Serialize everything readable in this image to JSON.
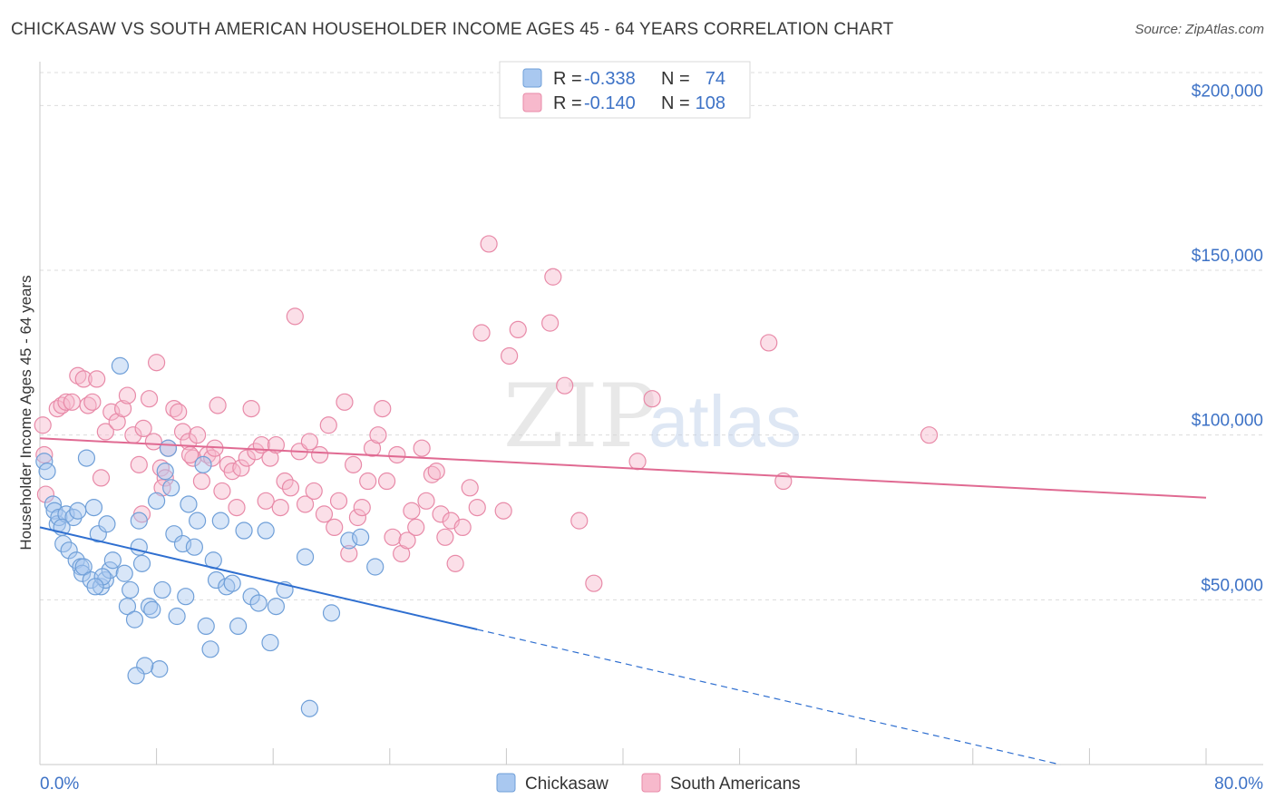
{
  "title": "CHICKASAW VS SOUTH AMERICAN HOUSEHOLDER INCOME AGES 45 - 64 YEARS CORRELATION CHART",
  "source": "Source: ZipAtlas.com",
  "watermark": {
    "part1": "ZIP",
    "part2": "atlas"
  },
  "colors": {
    "chickasaw_fill": "#a9c8f0",
    "chickasaw_stroke": "#6f9fd8",
    "chickasaw_line": "#2f6fd0",
    "south_fill": "#f7b9cc",
    "south_stroke": "#e88aa8",
    "south_line": "#e06a92",
    "axis_text": "#3d72c6",
    "grid": "#dcdcdc"
  },
  "legend": {
    "rows": [
      {
        "r_label": "R =",
        "r_value": "-0.338",
        "n_label": "N =",
        "n_value": "74"
      },
      {
        "r_label": "R =",
        "r_value": "-0.140",
        "n_label": "N =",
        "n_value": "108"
      }
    ]
  },
  "bottom_legend": [
    "Chickasaw",
    "South Americans"
  ],
  "chart_data": {
    "type": "scatter",
    "title": "CHICKASAW VS SOUTH AMERICAN HOUSEHOLDER INCOME AGES 45 - 64 YEARS CORRELATION CHART",
    "xlabel": "",
    "ylabel": "Householder Income Ages 45 - 64 years",
    "xlim": [
      0,
      80
    ],
    "ylim": [
      0,
      210000
    ],
    "x_tick_labels": [
      "0.0%",
      "80.0%"
    ],
    "y_ticks": [
      50000,
      100000,
      150000,
      200000
    ],
    "y_tick_labels": [
      "$50,000",
      "$100,000",
      "$150,000",
      "$200,000"
    ],
    "grid": true,
    "legend_position": "top-center",
    "series": [
      {
        "name": "Chickasaw",
        "R": -0.338,
        "N": 74,
        "trend": {
          "x0": 0,
          "y0": 72000,
          "x1": 30,
          "y1": 41000,
          "dash_to_x": 70,
          "dash_to_y": 0
        },
        "points": [
          [
            0.3,
            92000
          ],
          [
            0.5,
            89000
          ],
          [
            0.9,
            79000
          ],
          [
            1.0,
            77000
          ],
          [
            1.2,
            73000
          ],
          [
            1.3,
            75000
          ],
          [
            1.6,
            67000
          ],
          [
            1.8,
            76000
          ],
          [
            2.0,
            65000
          ],
          [
            2.3,
            75000
          ],
          [
            2.5,
            62000
          ],
          [
            2.8,
            60000
          ],
          [
            2.9,
            58000
          ],
          [
            3.0,
            60000
          ],
          [
            3.2,
            93000
          ],
          [
            3.5,
            56000
          ],
          [
            3.7,
            78000
          ],
          [
            4.0,
            70000
          ],
          [
            4.2,
            54000
          ],
          [
            4.5,
            56000
          ],
          [
            4.6,
            73000
          ],
          [
            4.8,
            59000
          ],
          [
            5.0,
            62000
          ],
          [
            5.5,
            121000
          ],
          [
            6.0,
            48000
          ],
          [
            6.2,
            53000
          ],
          [
            6.5,
            44000
          ],
          [
            6.8,
            74000
          ],
          [
            6.8,
            66000
          ],
          [
            7.0,
            61000
          ],
          [
            7.5,
            48000
          ],
          [
            7.7,
            47000
          ],
          [
            8.0,
            80000
          ],
          [
            8.2,
            29000
          ],
          [
            8.4,
            53000
          ],
          [
            8.6,
            89000
          ],
          [
            8.8,
            96000
          ],
          [
            9.0,
            84000
          ],
          [
            9.2,
            70000
          ],
          [
            9.4,
            45000
          ],
          [
            9.8,
            67000
          ],
          [
            10.0,
            51000
          ],
          [
            10.2,
            79000
          ],
          [
            10.6,
            66000
          ],
          [
            10.8,
            74000
          ],
          [
            11.2,
            91000
          ],
          [
            11.4,
            42000
          ],
          [
            11.7,
            35000
          ],
          [
            11.9,
            62000
          ],
          [
            12.1,
            56000
          ],
          [
            12.4,
            74000
          ],
          [
            12.8,
            54000
          ],
          [
            13.2,
            55000
          ],
          [
            13.6,
            42000
          ],
          [
            14.0,
            71000
          ],
          [
            14.5,
            51000
          ],
          [
            15.0,
            49000
          ],
          [
            15.5,
            71000
          ],
          [
            15.8,
            37000
          ],
          [
            16.2,
            48000
          ],
          [
            16.8,
            53000
          ],
          [
            18.2,
            63000
          ],
          [
            18.5,
            17000
          ],
          [
            20.0,
            46000
          ],
          [
            21.2,
            68000
          ],
          [
            22.0,
            69000
          ],
          [
            23.0,
            60000
          ],
          [
            5.8,
            58000
          ],
          [
            7.2,
            30000
          ],
          [
            1.5,
            72000
          ],
          [
            2.6,
            77000
          ],
          [
            4.3,
            57000
          ],
          [
            6.6,
            27000
          ],
          [
            3.8,
            54000
          ]
        ]
      },
      {
        "name": "South Americans",
        "R": -0.14,
        "N": 108,
        "trend": {
          "x0": 0,
          "y0": 99000,
          "x1": 80,
          "y1": 81000
        },
        "points": [
          [
            0.2,
            103000
          ],
          [
            0.3,
            94000
          ],
          [
            0.4,
            82000
          ],
          [
            1.2,
            108000
          ],
          [
            1.5,
            109000
          ],
          [
            1.8,
            110000
          ],
          [
            2.2,
            110000
          ],
          [
            2.6,
            118000
          ],
          [
            3.0,
            117000
          ],
          [
            3.3,
            109000
          ],
          [
            3.6,
            110000
          ],
          [
            3.9,
            117000
          ],
          [
            4.2,
            87000
          ],
          [
            4.5,
            101000
          ],
          [
            4.9,
            107000
          ],
          [
            5.3,
            104000
          ],
          [
            5.7,
            108000
          ],
          [
            6.0,
            112000
          ],
          [
            6.4,
            100000
          ],
          [
            6.8,
            91000
          ],
          [
            7.1,
            102000
          ],
          [
            7.5,
            111000
          ],
          [
            7.8,
            98000
          ],
          [
            8.0,
            122000
          ],
          [
            8.3,
            90000
          ],
          [
            8.6,
            87000
          ],
          [
            8.8,
            96000
          ],
          [
            9.2,
            108000
          ],
          [
            9.5,
            107000
          ],
          [
            9.8,
            101000
          ],
          [
            10.2,
            98000
          ],
          [
            10.5,
            93000
          ],
          [
            10.8,
            100000
          ],
          [
            11.1,
            86000
          ],
          [
            11.5,
            94000
          ],
          [
            11.8,
            93000
          ],
          [
            12.2,
            109000
          ],
          [
            12.5,
            83000
          ],
          [
            12.9,
            91000
          ],
          [
            13.2,
            89000
          ],
          [
            13.5,
            78000
          ],
          [
            13.8,
            90000
          ],
          [
            14.2,
            93000
          ],
          [
            14.5,
            108000
          ],
          [
            14.8,
            95000
          ],
          [
            15.2,
            97000
          ],
          [
            15.5,
            80000
          ],
          [
            15.8,
            93000
          ],
          [
            16.2,
            97000
          ],
          [
            16.5,
            78000
          ],
          [
            16.8,
            86000
          ],
          [
            17.2,
            84000
          ],
          [
            17.5,
            136000
          ],
          [
            17.8,
            95000
          ],
          [
            18.2,
            79000
          ],
          [
            18.5,
            98000
          ],
          [
            18.8,
            83000
          ],
          [
            19.2,
            94000
          ],
          [
            19.5,
            76000
          ],
          [
            19.8,
            103000
          ],
          [
            20.2,
            72000
          ],
          [
            20.5,
            80000
          ],
          [
            20.9,
            110000
          ],
          [
            21.2,
            64000
          ],
          [
            21.5,
            91000
          ],
          [
            21.8,
            75000
          ],
          [
            22.1,
            78000
          ],
          [
            22.5,
            86000
          ],
          [
            22.8,
            96000
          ],
          [
            23.2,
            100000
          ],
          [
            23.5,
            108000
          ],
          [
            23.8,
            86000
          ],
          [
            24.2,
            69000
          ],
          [
            24.5,
            94000
          ],
          [
            24.8,
            64000
          ],
          [
            25.2,
            68000
          ],
          [
            25.5,
            77000
          ],
          [
            25.8,
            72000
          ],
          [
            26.2,
            96000
          ],
          [
            26.5,
            80000
          ],
          [
            26.9,
            88000
          ],
          [
            27.2,
            89000
          ],
          [
            27.5,
            76000
          ],
          [
            27.8,
            69000
          ],
          [
            28.2,
            74000
          ],
          [
            28.5,
            61000
          ],
          [
            29.0,
            72000
          ],
          [
            29.5,
            84000
          ],
          [
            30.0,
            78000
          ],
          [
            30.3,
            131000
          ],
          [
            30.8,
            158000
          ],
          [
            31.8,
            77000
          ],
          [
            32.2,
            124000
          ],
          [
            32.8,
            132000
          ],
          [
            35.0,
            134000
          ],
          [
            35.2,
            148000
          ],
          [
            36.0,
            115000
          ],
          [
            37.0,
            74000
          ],
          [
            38.0,
            55000
          ],
          [
            41.0,
            92000
          ],
          [
            42.0,
            111000
          ],
          [
            50.0,
            128000
          ],
          [
            51.0,
            86000
          ],
          [
            61.0,
            100000
          ],
          [
            7.0,
            76000
          ],
          [
            8.4,
            84000
          ],
          [
            10.3,
            94000
          ],
          [
            12.0,
            96000
          ]
        ]
      }
    ]
  }
}
